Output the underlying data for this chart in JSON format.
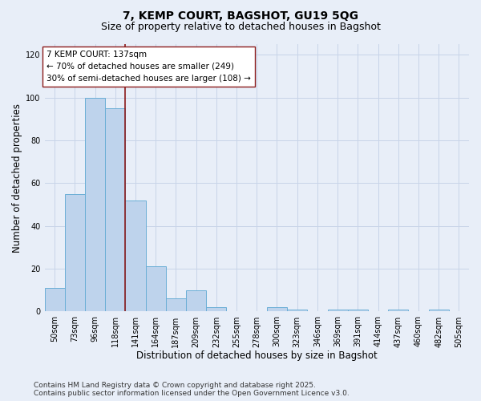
{
  "title": "7, KEMP COURT, BAGSHOT, GU19 5QG",
  "subtitle": "Size of property relative to detached houses in Bagshot",
  "xlabel": "Distribution of detached houses by size in Bagshot",
  "ylabel": "Number of detached properties",
  "categories": [
    "50sqm",
    "73sqm",
    "96sqm",
    "118sqm",
    "141sqm",
    "164sqm",
    "187sqm",
    "209sqm",
    "232sqm",
    "255sqm",
    "278sqm",
    "300sqm",
    "323sqm",
    "346sqm",
    "369sqm",
    "391sqm",
    "414sqm",
    "437sqm",
    "460sqm",
    "482sqm",
    "505sqm"
  ],
  "values": [
    11,
    55,
    100,
    95,
    52,
    21,
    6,
    10,
    2,
    0,
    0,
    2,
    1,
    0,
    1,
    1,
    0,
    1,
    0,
    1,
    0
  ],
  "bar_color": "#bed3ec",
  "bar_edge_color": "#6aaed6",
  "vline_index": 4,
  "vline_color": "#8b1a1a",
  "annotation_label": "7 KEMP COURT: 137sqm",
  "annotation_line1": "← 70% of detached houses are smaller (249)",
  "annotation_line2": "30% of semi-detached houses are larger (108) →",
  "annotation_box_facecolor": "#ffffff",
  "annotation_box_edgecolor": "#8b1a1a",
  "ylim": [
    0,
    125
  ],
  "yticks": [
    0,
    20,
    40,
    60,
    80,
    100,
    120
  ],
  "grid_color": "#c8d4e8",
  "background_color": "#e8eef8",
  "footer_line1": "Contains HM Land Registry data © Crown copyright and database right 2025.",
  "footer_line2": "Contains public sector information licensed under the Open Government Licence v3.0.",
  "title_fontsize": 10,
  "subtitle_fontsize": 9,
  "axis_label_fontsize": 8.5,
  "tick_fontsize": 7,
  "annotation_fontsize": 7.5,
  "footer_fontsize": 6.5
}
